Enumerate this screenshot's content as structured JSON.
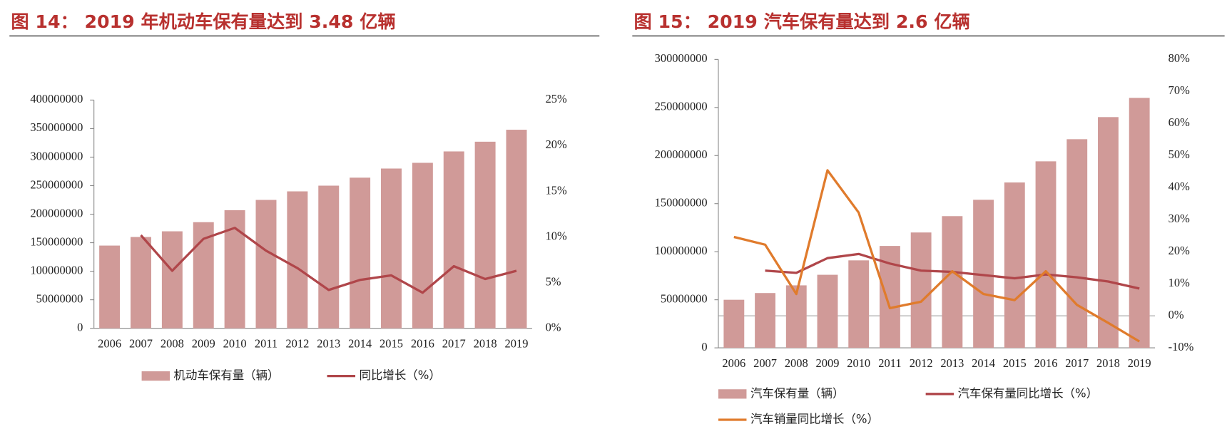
{
  "chart_data": [
    {
      "type": "combo",
      "title": "图 14：  2019 年机动车保有量达到 3.48 亿辆",
      "categories": [
        "2006",
        "2007",
        "2008",
        "2009",
        "2010",
        "2011",
        "2012",
        "2013",
        "2014",
        "2015",
        "2016",
        "2017",
        "2018",
        "2019"
      ],
      "series": [
        {
          "name": "机动车保有量（辆）",
          "type": "bar",
          "color": "#d09a98",
          "values": [
            145000000,
            160000000,
            170000000,
            186000000,
            207000000,
            225000000,
            240000000,
            250000000,
            264000000,
            280000000,
            290000000,
            310000000,
            327000000,
            348000000
          ]
        },
        {
          "name": "同比增长（%）",
          "type": "line",
          "axis": "y2",
          "color": "#b0464a",
          "values": [
            null,
            10.2,
            6.3,
            9.8,
            11.0,
            8.5,
            6.6,
            4.2,
            5.3,
            5.8,
            3.9,
            6.8,
            5.4,
            6.3
          ]
        }
      ],
      "ylim": [
        0,
        400000000
      ],
      "yticks": [
        0,
        50000000,
        100000000,
        150000000,
        200000000,
        250000000,
        300000000,
        350000000,
        400000000
      ],
      "y2lim": [
        0,
        25
      ],
      "y2ticks": [
        {
          "value": 0,
          "label": "0%"
        },
        {
          "value": 5,
          "label": "5%"
        },
        {
          "value": 10,
          "label": "10%"
        },
        {
          "value": 15,
          "label": "15%"
        },
        {
          "value": 20,
          "label": "20%"
        },
        {
          "value": 25,
          "label": "25%"
        }
      ]
    },
    {
      "type": "combo",
      "title": "图 15：  2019 汽车保有量达到 2.6 亿辆",
      "categories": [
        "2006",
        "2007",
        "2008",
        "2009",
        "2010",
        "2011",
        "2012",
        "2013",
        "2014",
        "2015",
        "2016",
        "2017",
        "2018",
        "2019"
      ],
      "series": [
        {
          "name": "汽车保有量（辆）",
          "type": "bar",
          "color": "#d09a98",
          "values": [
            50000000,
            57000000,
            65000000,
            76000000,
            91000000,
            106000000,
            120000000,
            137000000,
            154000000,
            172000000,
            194000000,
            217000000,
            240000000,
            260000000
          ]
        },
        {
          "name": "汽车保有量同比增长（%）",
          "type": "line",
          "axis": "y2",
          "color": "#b0464a",
          "values": [
            null,
            14.1,
            13.4,
            18.0,
            19.3,
            16.3,
            14.1,
            13.7,
            12.7,
            11.7,
            12.9,
            12.0,
            10.7,
            8.5
          ]
        },
        {
          "name": "汽车销量同比增长（%）",
          "type": "line",
          "axis": "y2",
          "color": "#e07b2c",
          "values": [
            24.6,
            22.2,
            6.8,
            45.4,
            32.2,
            2.4,
            4.4,
            13.9,
            6.8,
            4.9,
            13.9,
            3.4,
            -2.2,
            -8.0
          ]
        }
      ],
      "ylim": [
        0,
        300000000
      ],
      "yticks": [
        0,
        50000000,
        100000000,
        150000000,
        200000000,
        250000000,
        300000000
      ],
      "y2lim": [
        -10,
        80
      ],
      "y2ticks": [
        {
          "value": -10,
          "label": "-10%"
        },
        {
          "value": 0,
          "label": "0%"
        },
        {
          "value": 10,
          "label": "10%"
        },
        {
          "value": 20,
          "label": "20%"
        },
        {
          "value": 30,
          "label": "30%"
        },
        {
          "value": 40,
          "label": "40%"
        },
        {
          "value": 50,
          "label": "50%"
        },
        {
          "value": 60,
          "label": "60%"
        },
        {
          "value": 70,
          "label": "70%"
        },
        {
          "value": 80,
          "label": "80%"
        }
      ]
    }
  ]
}
